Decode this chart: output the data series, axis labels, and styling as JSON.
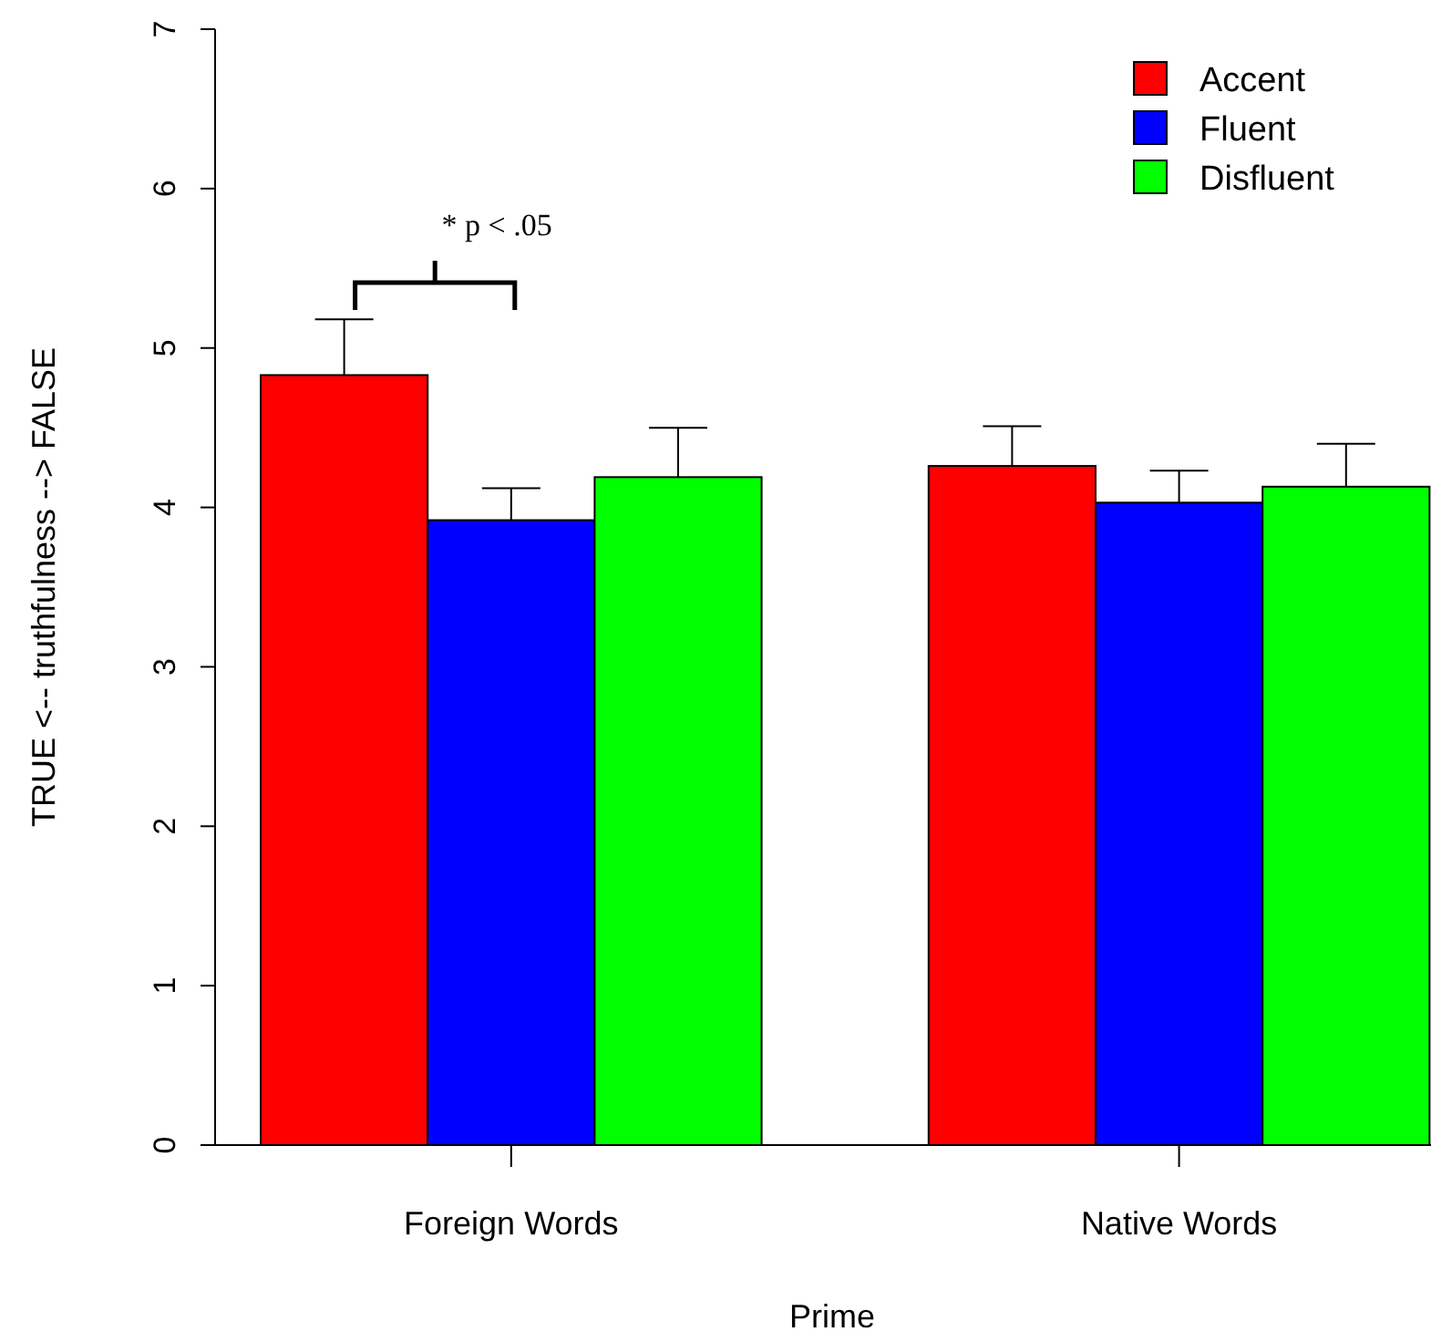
{
  "chart_data": {
    "type": "bar",
    "xlabel": "Prime",
    "ylabel": "TRUE <-- truthfulness --> FALSE",
    "categories": [
      "Foreign Words",
      "Native Words"
    ],
    "series": [
      {
        "name": "Accent",
        "color": "#ff0000",
        "values": [
          4.83,
          4.26
        ],
        "errors": [
          [
            4.83,
            5.18
          ],
          [
            4.26,
            4.51
          ]
        ]
      },
      {
        "name": "Fluent",
        "color": "#0000ff",
        "values": [
          3.92,
          4.03
        ],
        "errors": [
          [
            3.92,
            4.12
          ],
          [
            4.03,
            4.23
          ]
        ]
      },
      {
        "name": "Disfluent",
        "color": "#00ff00",
        "values": [
          4.19,
          4.13
        ],
        "errors": [
          [
            4.19,
            4.5
          ],
          [
            4.13,
            4.4
          ]
        ]
      }
    ],
    "ylim": [
      0,
      7
    ],
    "yticks": [
      0,
      1,
      2,
      3,
      4,
      5,
      6,
      7
    ],
    "grid": false,
    "legend": "top right",
    "annotations": [
      "* p < .05"
    ]
  }
}
